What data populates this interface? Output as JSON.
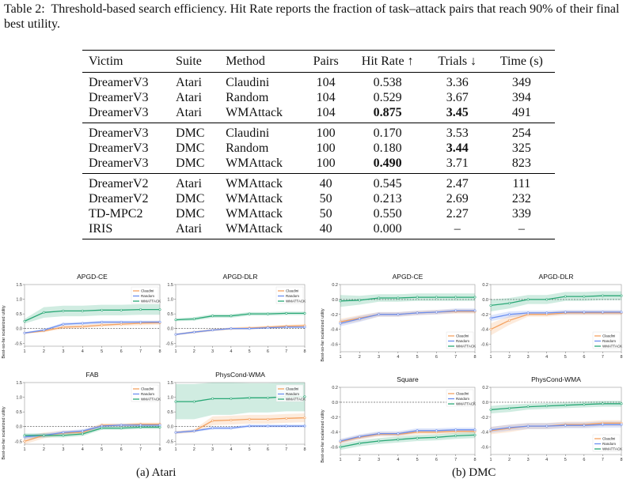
{
  "caption": {
    "label": "Table 2:",
    "text": "Threshold-based search efficiency. Hit Rate reports the fraction of task–attack pairs that reach 90% of their final best utility."
  },
  "table": {
    "headers": [
      "Victim",
      "Suite",
      "Method",
      "Pairs",
      "Hit Rate ↑",
      "Trials ↓",
      "Time (s)"
    ],
    "groups": [
      [
        {
          "cells": [
            "DreamerV3",
            "Atari",
            "Claudini",
            "104",
            "0.538",
            "3.36",
            "349"
          ],
          "bold": []
        },
        {
          "cells": [
            "DreamerV3",
            "Atari",
            "Random",
            "104",
            "0.529",
            "3.67",
            "394"
          ],
          "bold": []
        },
        {
          "cells": [
            "DreamerV3",
            "Atari",
            "WMAttack",
            "104",
            "0.875",
            "3.45",
            "491"
          ],
          "bold": [
            4,
            5
          ]
        }
      ],
      [
        {
          "cells": [
            "DreamerV3",
            "DMC",
            "Claudini",
            "100",
            "0.170",
            "3.53",
            "254"
          ],
          "bold": []
        },
        {
          "cells": [
            "DreamerV3",
            "DMC",
            "Random",
            "100",
            "0.180",
            "3.44",
            "325"
          ],
          "bold": [
            5
          ]
        },
        {
          "cells": [
            "DreamerV3",
            "DMC",
            "WMAttack",
            "100",
            "0.490",
            "3.71",
            "823"
          ],
          "bold": [
            4
          ]
        }
      ],
      [
        {
          "cells": [
            "DreamerV2",
            "Atari",
            "WMAttack",
            "40",
            "0.545",
            "2.47",
            "111"
          ],
          "bold": []
        },
        {
          "cells": [
            "DreamerV2",
            "DMC",
            "WMAttack",
            "50",
            "0.213",
            "2.69",
            "232"
          ],
          "bold": []
        },
        {
          "cells": [
            "TD-MPC2",
            "DMC",
            "WMAttack",
            "50",
            "0.550",
            "2.27",
            "339"
          ],
          "bold": []
        },
        {
          "cells": [
            "IRIS",
            "Atari",
            "WMAttack",
            "40",
            "0.000",
            "–",
            "–"
          ],
          "bold": []
        }
      ]
    ]
  },
  "figure": {
    "ylabel": "Best-so-far scalarized utility",
    "subcaptions": [
      "(a) Atari",
      "(b) DMC"
    ],
    "legend_names": [
      "Claudini",
      "Random",
      "WMATTACK"
    ],
    "colors": {
      "Claudini": "#f4a261",
      "Random": "#6b8ff0",
      "WMATTACK": "#2aa876"
    }
  },
  "chart_data": [
    {
      "type": "line",
      "title": "APGD-CE",
      "suite": "Atari",
      "x": [
        1,
        2,
        3,
        4,
        5,
        6,
        7,
        8
      ],
      "ylim": [
        -0.6,
        1.5
      ],
      "yticks": [
        -0.5,
        0.0,
        0.5,
        1.0,
        1.5
      ],
      "legend": "top-right",
      "series": [
        {
          "name": "Claudini",
          "values": [
            -0.15,
            -0.08,
            0.05,
            0.07,
            0.12,
            0.15,
            0.18,
            0.2
          ],
          "band": [
            0.03,
            0.04,
            0.06,
            0.06,
            0.06,
            0.06,
            0.07,
            0.07
          ]
        },
        {
          "name": "Random",
          "values": [
            -0.15,
            -0.05,
            0.15,
            0.18,
            0.22,
            0.22,
            0.22,
            0.22
          ],
          "band": [
            0.03,
            0.04,
            0.05,
            0.05,
            0.05,
            0.05,
            0.05,
            0.05
          ]
        },
        {
          "name": "WMATTACK",
          "values": [
            0.25,
            0.55,
            0.6,
            0.6,
            0.63,
            0.63,
            0.65,
            0.65
          ],
          "band": [
            0.08,
            0.18,
            0.18,
            0.18,
            0.18,
            0.18,
            0.18,
            0.18
          ]
        }
      ]
    },
    {
      "type": "line",
      "title": "APGD-DLR",
      "suite": "Atari",
      "x": [
        1,
        2,
        3,
        4,
        5,
        6,
        7,
        8
      ],
      "ylim": [
        -0.6,
        1.5
      ],
      "yticks": [
        -0.5,
        0.0,
        0.5,
        1.0,
        1.5
      ],
      "legend": "top-right",
      "series": [
        {
          "name": "Claudini",
          "values": [
            -0.2,
            -0.12,
            -0.05,
            0.0,
            0.02,
            0.05,
            0.08,
            0.1
          ],
          "band": [
            0.03,
            0.04,
            0.04,
            0.04,
            0.05,
            0.05,
            0.05,
            0.05
          ]
        },
        {
          "name": "Random",
          "values": [
            -0.2,
            -0.12,
            -0.05,
            0.0,
            0.0,
            0.03,
            0.05,
            0.05
          ],
          "band": [
            0.03,
            0.03,
            0.03,
            0.03,
            0.03,
            0.03,
            0.03,
            0.03
          ]
        },
        {
          "name": "WMATTACK",
          "values": [
            0.3,
            0.33,
            0.43,
            0.43,
            0.5,
            0.5,
            0.52,
            0.52
          ],
          "band": [
            0.05,
            0.06,
            0.06,
            0.06,
            0.06,
            0.06,
            0.06,
            0.06
          ]
        }
      ]
    },
    {
      "type": "line",
      "title": "FAB",
      "suite": "Atari",
      "x": [
        1,
        2,
        3,
        4,
        5,
        6,
        7,
        8
      ],
      "ylim": [
        -0.6,
        1.5
      ],
      "yticks": [
        -0.5,
        0.0,
        0.5,
        1.0,
        1.5
      ],
      "legend": "top-right",
      "series": [
        {
          "name": "Claudini",
          "values": [
            -0.5,
            -0.3,
            -0.22,
            -0.2,
            0.05,
            0.05,
            0.08,
            0.08
          ],
          "band": [
            0.15,
            0.1,
            0.08,
            0.08,
            0.06,
            0.06,
            0.06,
            0.06
          ]
        },
        {
          "name": "Random",
          "values": [
            -0.35,
            -0.3,
            -0.2,
            -0.15,
            0.02,
            0.05,
            0.05,
            0.05
          ],
          "band": [
            0.08,
            0.07,
            0.06,
            0.06,
            0.05,
            0.05,
            0.05,
            0.05
          ]
        },
        {
          "name": "WMATTACK",
          "values": [
            -0.3,
            -0.3,
            -0.3,
            -0.25,
            -0.05,
            -0.05,
            -0.02,
            -0.02
          ],
          "band": [
            0.07,
            0.07,
            0.07,
            0.07,
            0.06,
            0.06,
            0.06,
            0.06
          ]
        }
      ]
    },
    {
      "type": "line",
      "title": "PhysCond-WMA",
      "suite": "Atari",
      "x": [
        1,
        2,
        3,
        4,
        5,
        6,
        7,
        8
      ],
      "ylim": [
        -0.6,
        1.5
      ],
      "yticks": [
        -0.5,
        0.0,
        0.5,
        1.0,
        1.5
      ],
      "legend": "top-right",
      "series": [
        {
          "name": "Claudini",
          "values": [
            -0.2,
            -0.15,
            0.2,
            0.22,
            0.25,
            0.25,
            0.28,
            0.3
          ],
          "band": [
            0.05,
            0.06,
            0.15,
            0.15,
            0.15,
            0.15,
            0.15,
            0.15
          ]
        },
        {
          "name": "Random",
          "values": [
            -0.2,
            -0.15,
            -0.05,
            -0.05,
            0.02,
            0.02,
            0.02,
            0.02
          ],
          "band": [
            0.04,
            0.04,
            0.05,
            0.05,
            0.05,
            0.05,
            0.05,
            0.05
          ]
        },
        {
          "name": "WMATTACK",
          "values": [
            0.85,
            0.85,
            0.95,
            0.95,
            0.98,
            0.98,
            1.02,
            1.02
          ],
          "band": [
            0.6,
            0.6,
            0.55,
            0.55,
            0.5,
            0.5,
            0.5,
            0.5
          ]
        }
      ]
    },
    {
      "type": "line",
      "title": "APGD-CE",
      "suite": "DMC",
      "x": [
        1,
        2,
        3,
        4,
        5,
        6,
        7,
        8
      ],
      "ylim": [
        -0.7,
        0.2
      ],
      "yticks": [
        -0.6,
        -0.4,
        -0.2,
        0.0,
        0.2
      ],
      "legend": "bottom-right",
      "series": [
        {
          "name": "Claudini",
          "values": [
            -0.3,
            -0.25,
            -0.2,
            -0.2,
            -0.18,
            -0.17,
            -0.16,
            -0.16
          ],
          "band": [
            0.04,
            0.04,
            0.03,
            0.03,
            0.03,
            0.03,
            0.03,
            0.03
          ]
        },
        {
          "name": "Random",
          "values": [
            -0.32,
            -0.26,
            -0.2,
            -0.2,
            -0.18,
            -0.17,
            -0.15,
            -0.15
          ],
          "band": [
            0.04,
            0.04,
            0.03,
            0.03,
            0.03,
            0.03,
            0.03,
            0.03
          ]
        },
        {
          "name": "WMATTACK",
          "values": [
            -0.02,
            -0.01,
            0.02,
            0.02,
            0.03,
            0.03,
            0.03,
            0.03
          ],
          "band": [
            0.08,
            0.06,
            0.05,
            0.05,
            0.05,
            0.05,
            0.05,
            0.05
          ]
        }
      ]
    },
    {
      "type": "line",
      "title": "APGD-DLR",
      "suite": "DMC",
      "x": [
        1,
        2,
        3,
        4,
        5,
        6,
        7,
        8
      ],
      "ylim": [
        -0.7,
        0.2
      ],
      "yticks": [
        -0.6,
        -0.4,
        -0.2,
        0.0,
        0.2
      ],
      "legend": "bottom-right",
      "series": [
        {
          "name": "Claudini",
          "values": [
            -0.4,
            -0.28,
            -0.2,
            -0.2,
            -0.18,
            -0.18,
            -0.18,
            -0.18
          ],
          "band": [
            0.08,
            0.06,
            0.03,
            0.03,
            0.03,
            0.03,
            0.03,
            0.03
          ]
        },
        {
          "name": "Random",
          "values": [
            -0.25,
            -0.2,
            -0.18,
            -0.18,
            -0.17,
            -0.17,
            -0.17,
            -0.17
          ],
          "band": [
            0.04,
            0.04,
            0.03,
            0.03,
            0.03,
            0.03,
            0.03,
            0.03
          ]
        },
        {
          "name": "WMATTACK",
          "values": [
            -0.08,
            -0.05,
            0.0,
            0.0,
            0.04,
            0.04,
            0.05,
            0.05
          ],
          "band": [
            0.08,
            0.07,
            0.06,
            0.06,
            0.06,
            0.06,
            0.06,
            0.06
          ]
        }
      ]
    },
    {
      "type": "line",
      "title": "Square",
      "suite": "DMC",
      "x": [
        1,
        2,
        3,
        4,
        5,
        6,
        7,
        8
      ],
      "ylim": [
        -0.7,
        0.2
      ],
      "yticks": [
        -0.6,
        -0.4,
        -0.2,
        0.0,
        0.2
      ],
      "legend": "top-right",
      "series": [
        {
          "name": "Claudini",
          "values": [
            -0.53,
            -0.47,
            -0.43,
            -0.43,
            -0.4,
            -0.4,
            -0.39,
            -0.39
          ],
          "band": [
            0.03,
            0.03,
            0.03,
            0.03,
            0.03,
            0.03,
            0.03,
            0.03
          ]
        },
        {
          "name": "Random",
          "values": [
            -0.52,
            -0.46,
            -0.42,
            -0.42,
            -0.38,
            -0.38,
            -0.37,
            -0.37
          ],
          "band": [
            0.03,
            0.03,
            0.03,
            0.03,
            0.03,
            0.03,
            0.03,
            0.03
          ]
        },
        {
          "name": "WMATTACK",
          "values": [
            -0.6,
            -0.55,
            -0.52,
            -0.5,
            -0.48,
            -0.47,
            -0.45,
            -0.44
          ],
          "band": [
            0.04,
            0.04,
            0.04,
            0.04,
            0.04,
            0.04,
            0.04,
            0.04
          ]
        }
      ]
    },
    {
      "type": "line",
      "title": "PhysCond-WMA",
      "suite": "DMC",
      "x": [
        1,
        2,
        3,
        4,
        5,
        6,
        7,
        8
      ],
      "ylim": [
        -0.7,
        0.2
      ],
      "yticks": [
        -0.6,
        -0.4,
        -0.2,
        0.0,
        0.2
      ],
      "legend": "bottom-right",
      "series": [
        {
          "name": "Claudini",
          "values": [
            -0.38,
            -0.35,
            -0.32,
            -0.32,
            -0.3,
            -0.3,
            -0.28,
            -0.28
          ],
          "band": [
            0.05,
            0.05,
            0.04,
            0.04,
            0.04,
            0.04,
            0.04,
            0.04
          ]
        },
        {
          "name": "Random",
          "values": [
            -0.37,
            -0.34,
            -0.32,
            -0.32,
            -0.31,
            -0.31,
            -0.3,
            -0.3
          ],
          "band": [
            0.04,
            0.04,
            0.04,
            0.04,
            0.04,
            0.04,
            0.04,
            0.04
          ]
        },
        {
          "name": "WMATTACK",
          "values": [
            -0.1,
            -0.08,
            -0.06,
            -0.05,
            -0.04,
            -0.03,
            -0.02,
            -0.02
          ],
          "band": [
            0.05,
            0.05,
            0.04,
            0.04,
            0.04,
            0.04,
            0.04,
            0.04
          ]
        }
      ]
    }
  ]
}
